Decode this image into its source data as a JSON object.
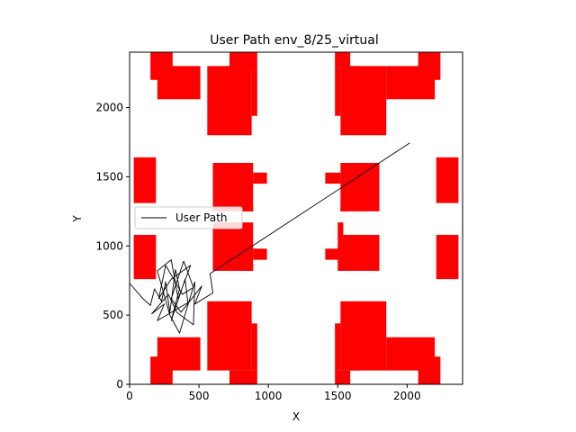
{
  "chart_data": {
    "type": "line",
    "title": "User Path env_8/25_virtual",
    "xlabel": "X",
    "ylabel": "Y",
    "xlim": [
      0,
      2400
    ],
    "ylim": [
      0,
      2400
    ],
    "xticks": [
      0,
      500,
      1000,
      1500,
      2000
    ],
    "yticks": [
      0,
      500,
      1000,
      1500,
      2000
    ],
    "grid": false,
    "legend_position": "center-left",
    "obstacle_color": "#ff0000",
    "path_color": "#000000",
    "series": [
      {
        "name": "User Path",
        "points": [
          [
            0,
            730
          ],
          [
            95,
            620
          ],
          [
            150,
            570
          ],
          [
            180,
            690
          ],
          [
            230,
            600
          ],
          [
            260,
            740
          ],
          [
            290,
            520
          ],
          [
            330,
            830
          ],
          [
            360,
            690
          ],
          [
            300,
            460
          ],
          [
            400,
            760
          ],
          [
            420,
            590
          ],
          [
            200,
            460
          ],
          [
            250,
            580
          ],
          [
            160,
            510
          ],
          [
            280,
            650
          ],
          [
            340,
            520
          ],
          [
            460,
            430
          ],
          [
            470,
            740
          ],
          [
            360,
            370
          ],
          [
            290,
            500
          ],
          [
            200,
            820
          ],
          [
            300,
            900
          ],
          [
            350,
            620
          ],
          [
            440,
            860
          ],
          [
            300,
            760
          ],
          [
            210,
            620
          ],
          [
            260,
            860
          ],
          [
            380,
            650
          ],
          [
            460,
            700
          ],
          [
            390,
            890
          ],
          [
            300,
            620
          ],
          [
            370,
            520
          ],
          [
            520,
            710
          ],
          [
            470,
            580
          ],
          [
            600,
            660
          ],
          [
            580,
            800
          ],
          [
            2020,
            1745
          ]
        ]
      }
    ],
    "obstacles": [
      [
        150,
        2200,
        310,
        2400
      ],
      [
        200,
        2060,
        510,
        2300
      ],
      [
        560,
        1800,
        880,
        2300
      ],
      [
        720,
        2270,
        920,
        2400
      ],
      [
        880,
        1940,
        920,
        2270
      ],
      [
        1480,
        2290,
        1590,
        2400
      ],
      [
        1480,
        1940,
        1520,
        2290
      ],
      [
        1520,
        1800,
        1850,
        2300
      ],
      [
        1590,
        2250,
        1660,
        2300
      ],
      [
        1850,
        2060,
        2200,
        2300
      ],
      [
        2080,
        2200,
        2240,
        2400
      ],
      [
        30,
        1310,
        190,
        1640
      ],
      [
        2210,
        1310,
        2370,
        1640
      ],
      [
        600,
        1250,
        890,
        1600
      ],
      [
        890,
        1450,
        990,
        1530
      ],
      [
        820,
        1250,
        890,
        1300
      ],
      [
        1410,
        1450,
        1520,
        1530
      ],
      [
        1520,
        1250,
        1800,
        1600
      ],
      [
        1520,
        1250,
        1590,
        1300
      ],
      [
        30,
        760,
        190,
        1080
      ],
      [
        2210,
        760,
        2370,
        1080
      ],
      [
        600,
        820,
        890,
        1170
      ],
      [
        890,
        900,
        990,
        980
      ],
      [
        820,
        820,
        890,
        870
      ],
      [
        1410,
        900,
        1520,
        980
      ],
      [
        1520,
        820,
        1800,
        1080
      ],
      [
        1500,
        820,
        1540,
        1170
      ],
      [
        560,
        100,
        880,
        600
      ],
      [
        720,
        0,
        920,
        100
      ],
      [
        880,
        100,
        920,
        440
      ],
      [
        200,
        100,
        510,
        340
      ],
      [
        150,
        0,
        310,
        200
      ],
      [
        1520,
        100,
        1850,
        600
      ],
      [
        1480,
        0,
        1590,
        100
      ],
      [
        1480,
        100,
        1520,
        440
      ],
      [
        1590,
        100,
        1660,
        160
      ],
      [
        1850,
        100,
        2200,
        340
      ],
      [
        2080,
        0,
        2240,
        200
      ]
    ]
  }
}
